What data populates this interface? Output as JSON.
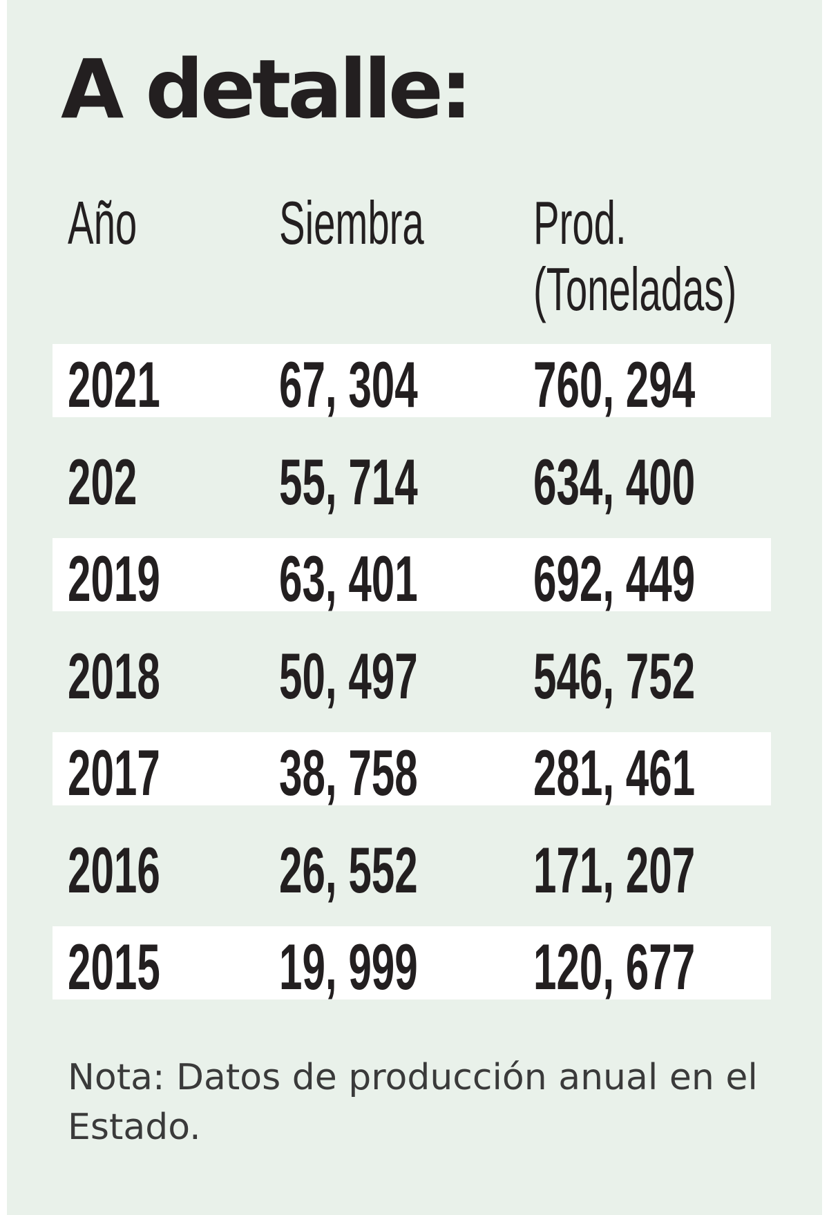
{
  "title": "A detalle:",
  "table": {
    "headers": {
      "year": "Año",
      "sowing": "Siembra",
      "production_line1": "Prod.",
      "production_line2": "(Toneladas)"
    },
    "rows": [
      {
        "year": "2021",
        "sowing": "67, 304",
        "production": "760, 294"
      },
      {
        "year": "202",
        "sowing": "55, 714",
        "production": "634, 400"
      },
      {
        "year": "2019",
        "sowing": "63, 401",
        "production": "692, 449"
      },
      {
        "year": "2018",
        "sowing": "50, 497",
        "production": "546, 752"
      },
      {
        "year": "2017",
        "sowing": "38, 758",
        "production": "281, 461"
      },
      {
        "year": "2016",
        "sowing": "26, 552",
        "production": "171, 207"
      },
      {
        "year": "2015",
        "sowing": "19, 999",
        "production": "120, 677"
      }
    ]
  },
  "note": "Nota: Datos de producción anual en el Estado.",
  "colors": {
    "background": "#e9f1ea",
    "row_highlight": "#ffffff",
    "text": "#231f20"
  }
}
